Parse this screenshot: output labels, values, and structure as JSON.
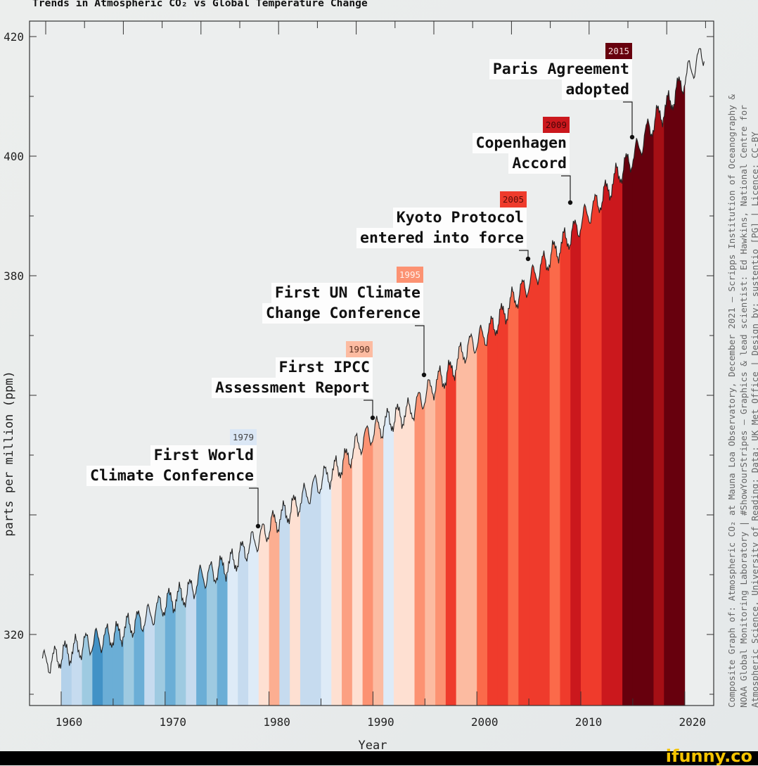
{
  "chart_data": {
    "type": "line",
    "title": "Trends in Atmospheric CO₂ vs Global Temperature Change",
    "xlabel": "Year",
    "ylabel": "parts per million (ppm)",
    "xlim": [
      1955.3,
      2023
    ],
    "ylim": [
      308.1,
      420.8
    ],
    "x_ticks": [
      1960,
      1970,
      1980,
      1990,
      2000,
      2010,
      2020
    ],
    "x_tick_labels": [
      "1960",
      "1970",
      "1980",
      "1990",
      "2000",
      "2010",
      "2020"
    ],
    "y_tick_labels": [
      {
        "value": 420,
        "label": "420"
      },
      {
        "value": 400,
        "label": "400"
      },
      {
        "value": 380,
        "label": "380"
      },
      {
        "value": 320,
        "label": "320"
      }
    ],
    "grid": false,
    "series": [
      {
        "years": [
          1958,
          1959,
          1960,
          1961,
          1962,
          1963,
          1964,
          1965,
          1966,
          1967,
          1968,
          1969,
          1970,
          1971,
          1972,
          1973,
          1974,
          1975,
          1976,
          1977,
          1978,
          1979,
          1980,
          1981,
          1982,
          1983,
          1984,
          1985,
          1986,
          1987,
          1988,
          1989,
          1990,
          1991,
          1992,
          1993,
          1994,
          1995,
          1996,
          1997,
          1998,
          1999,
          2000,
          2001,
          2002,
          2003,
          2004,
          2005,
          2006,
          2007,
          2008,
          2009,
          2010,
          2011,
          2012,
          2013,
          2014,
          2015,
          2016,
          2017,
          2018,
          2019,
          2020,
          2021
        ],
        "values": [
          315.3,
          315.98,
          316.91,
          317.64,
          318.45,
          318.99,
          319.62,
          320.04,
          321.37,
          322.18,
          323.05,
          324.62,
          325.68,
          326.32,
          327.46,
          329.68,
          330.19,
          331.13,
          332.03,
          333.84,
          335.41,
          336.84,
          338.76,
          340.12,
          341.48,
          343.15,
          344.87,
          346.35,
          347.61,
          349.31,
          351.69,
          353.2,
          354.45,
          355.7,
          356.54,
          357.21,
          358.96,
          360.97,
          362.74,
          363.88,
          366.84,
          368.54,
          369.71,
          371.32,
          373.45,
          375.98,
          377.7,
          379.98,
          382.09,
          384.02,
          385.83,
          387.64,
          390.1,
          391.85,
          394.06,
          396.74,
          398.81,
          401.01,
          404.41,
          406.76,
          408.72,
          411.66,
          414.24,
          416.45
        ],
        "color": "#222222"
      }
    ],
    "stripes": {
      "years": [
        1960,
        1961,
        1962,
        1963,
        1964,
        1965,
        1966,
        1967,
        1968,
        1969,
        1970,
        1971,
        1972,
        1973,
        1974,
        1975,
        1976,
        1977,
        1978,
        1979,
        1980,
        1981,
        1982,
        1983,
        1984,
        1985,
        1986,
        1987,
        1988,
        1989,
        1990,
        1991,
        1992,
        1993,
        1994,
        1995,
        1996,
        1997,
        1998,
        1999,
        2000,
        2001,
        2002,
        2003,
        2004,
        2005,
        2006,
        2007,
        2008,
        2009,
        2010,
        2011,
        2012,
        2013,
        2014,
        2015,
        2016,
        2017,
        2018,
        2019
      ],
      "colors": [
        "#b3d1ea",
        "#c6dbef",
        "#9ecae1",
        "#4292c6",
        "#6baed6",
        "#6baed6",
        "#9ecae1",
        "#6baed6",
        "#c6dbef",
        "#9ecae1",
        "#6baed6",
        "#9ecae1",
        "#c6dbef",
        "#6baed6",
        "#9ecae1",
        "#6baed6",
        "#deebf7",
        "#c6dbef",
        "#deebf7",
        "#fee0d2",
        "#fcae91",
        "#c6dbef",
        "#fee0d2",
        "#c6dbef",
        "#c6dbef",
        "#deebf7",
        "#fee0d2",
        "#fca082",
        "#fee0d2",
        "#fc9272",
        "#fcbba1",
        "#deebf7",
        "#fee0d2",
        "#fee0d2",
        "#fc9272",
        "#fcbba1",
        "#fc9272",
        "#ef3b2c",
        "#fcbba1",
        "#fcbba1",
        "#fb6a4a",
        "#ef3b2c",
        "#ef3b2c",
        "#fb6a4a",
        "#ef3b2c",
        "#ef3b2c",
        "#ef3b2c",
        "#fb6a4a",
        "#ef3b2c",
        "#cb181d",
        "#ef3b2c",
        "#ef3b2c",
        "#cb181d",
        "#cb181d",
        "#67000d",
        "#67000d",
        "#67000d",
        "#a50f15",
        "#67000d",
        "#67000d"
      ]
    },
    "annotations": [
      {
        "year": "1979",
        "lines": [
          "First World",
          "Climate Conference"
        ],
        "badge_color": "#dbe7f5",
        "badge_text_color": "#444444"
      },
      {
        "year": "1990",
        "lines": [
          "First IPCC",
          "Assessment Report"
        ],
        "badge_color": "#fcbba1",
        "badge_text_color": "#5a3020"
      },
      {
        "year": "1995",
        "lines": [
          "First UN Climate",
          "Change Conference"
        ],
        "badge_color": "#fc9272",
        "badge_text_color": "#fff3ee"
      },
      {
        "year": "2005",
        "lines": [
          "Kyoto Protocol",
          "entered into force"
        ],
        "badge_color": "#ef3b2c",
        "badge_text_color": "#5a0c08"
      },
      {
        "year": "2009",
        "lines": [
          "Copenhagen",
          "Accord"
        ],
        "badge_color": "#cb181d",
        "badge_text_color": "#4a0508"
      },
      {
        "year": "2015",
        "lines": [
          "Paris Agreement",
          "adopted"
        ],
        "badge_color": "#67000d",
        "badge_text_color": "#f3dada"
      }
    ]
  },
  "credits": [
    "Composite Graph of: Atmospheric CO₂ at Mauna Loa Observatory, December 2021 – Scripps Institution of Oceanography &",
    "NOAA Global Monitoring Laboratory | #ShowYourStripes – Graphics & lead scientist: Ed Hawkins, National Centre for",
    "Atmospheric Science, University of Reading; Data: UK Met Office | Design by: sustentio [PG] | Licence: CC-BY"
  ],
  "watermark": "ifunny.co"
}
